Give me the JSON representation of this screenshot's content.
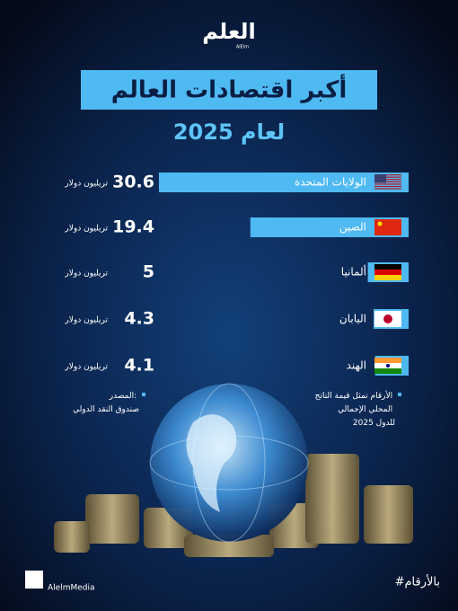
{
  "chart_data": {
    "type": "bar",
    "orientation": "horizontal",
    "logo": "العلم",
    "logo_sub": "AlElm",
    "title": "أكبر اقتصادات العالم",
    "subtitle": "لعام 2025",
    "categories": [
      "الولايات المتحدة",
      "الصين",
      "ألمانيا",
      "اليابان",
      "الهند"
    ],
    "values": [
      30.6,
      19.4,
      5,
      4.3,
      4.1
    ],
    "unit": "تريليون دولار",
    "color": "#4fb9f2",
    "note": [
      "الأرقام تمثل قيمة الناتج",
      "المحلي الإجمالي",
      "للدول 2025"
    ],
    "source": [
      "المصدر:",
      "صندوق النقد الدولي"
    ],
    "handle": "AlelmMedia",
    "hashtag": "#بالأرقام"
  }
}
